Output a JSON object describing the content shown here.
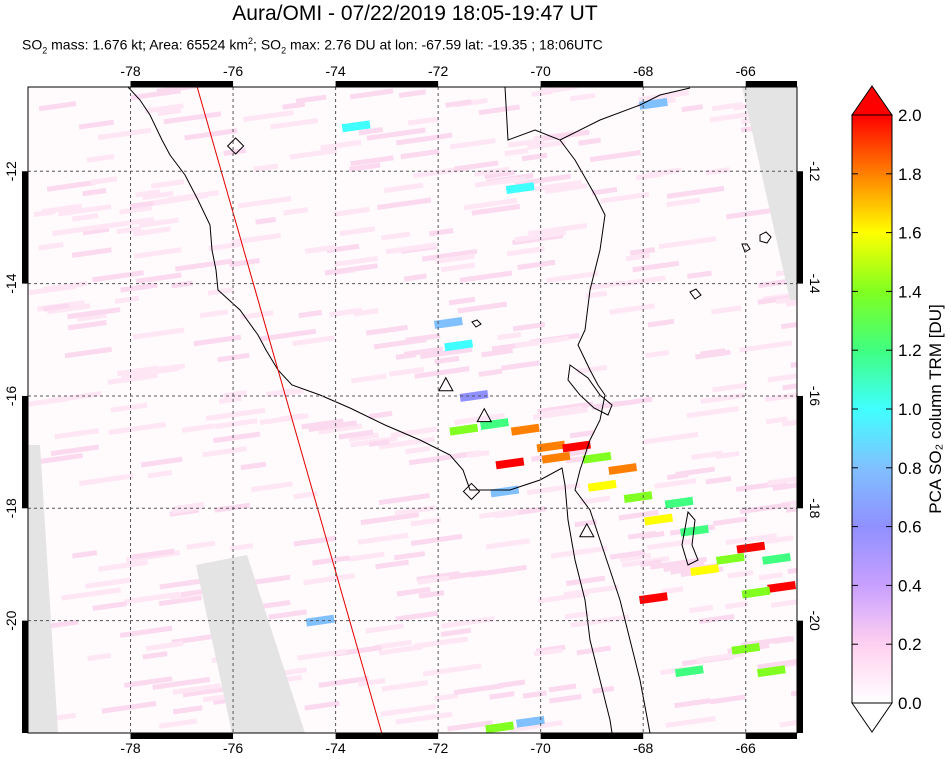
{
  "title": "Aura/OMI - 07/22/2019 18:05-19:47 UT",
  "subtitle": {
    "mass_label": "SO",
    "mass_sub": "2",
    "mass_text": " mass: 1.676 kt; Area: 65524 km",
    "area_sup": "2",
    "max_prefix": "; SO",
    "max_sub": "2",
    "max_text": " max: 2.76 DU at lon: -67.59 lat: -19.35 ; 18:06UTC"
  },
  "chart_data": {
    "type": "heatmap",
    "title": "Aura/OMI - 07/22/2019 18:05-19:47 UT",
    "xlim": [
      -80,
      -65
    ],
    "ylim": [
      -22,
      -10.5
    ],
    "x_ticks": [
      -78,
      -76,
      -74,
      -72,
      -70,
      -68,
      -66
    ],
    "y_ticks": [
      -12,
      -14,
      -16,
      -18,
      -20
    ],
    "x_tick_labels": [
      "-78",
      "-76",
      "-74",
      "-72",
      "-70",
      "-68",
      "-66"
    ],
    "y_tick_labels": [
      "-12",
      "-14",
      "-16",
      "-18",
      "-20"
    ],
    "grid": true,
    "colorbar": {
      "label": "PCA SO₂ column TRM [DU]",
      "range": [
        0.0,
        2.0
      ],
      "tick_labels": [
        "0.0",
        "0.2",
        "0.4",
        "0.6",
        "0.8",
        "1.0",
        "1.2",
        "1.4",
        "1.6",
        "1.8",
        "2.0"
      ],
      "colors": [
        "#ffffff",
        "#ffd0f0",
        "#c8a0ff",
        "#9090ff",
        "#80c0ff",
        "#40ffff",
        "#40ff80",
        "#80ff20",
        "#ffff00",
        "#ff8000",
        "#ff0000"
      ]
    },
    "volcanoes": [
      {
        "lon": -75.95,
        "lat": -11.55,
        "symbol": "diamond"
      },
      {
        "lon": -71.85,
        "lat": -15.8,
        "symbol": "triangle"
      },
      {
        "lon": -71.1,
        "lat": -16.35,
        "symbol": "triangle"
      },
      {
        "lon": -71.35,
        "lat": -17.7,
        "symbol": "diamond"
      },
      {
        "lon": -69.1,
        "lat": -18.4,
        "symbol": "triangle"
      }
    ],
    "orbit_edge_line": [
      [
        -76.7,
        -10.5
      ],
      [
        -73.1,
        -22
      ]
    ],
    "so2_pixels": [
      {
        "lon": -71.5,
        "lat": -16.6,
        "value": 1.3
      },
      {
        "lon": -70.9,
        "lat": -16.5,
        "value": 1.2
      },
      {
        "lon": -70.3,
        "lat": -16.6,
        "value": 1.7
      },
      {
        "lon": -69.8,
        "lat": -16.9,
        "value": 1.8
      },
      {
        "lon": -69.3,
        "lat": -16.9,
        "value": 2.0
      },
      {
        "lon": -70.6,
        "lat": -17.2,
        "value": 2.0
      },
      {
        "lon": -69.7,
        "lat": -17.1,
        "value": 1.8
      },
      {
        "lon": -68.9,
        "lat": -17.1,
        "value": 1.4
      },
      {
        "lon": -68.4,
        "lat": -17.3,
        "value": 1.8
      },
      {
        "lon": -68.8,
        "lat": -17.6,
        "value": 1.5
      },
      {
        "lon": -68.1,
        "lat": -17.8,
        "value": 1.4
      },
      {
        "lon": -67.7,
        "lat": -18.2,
        "value": 1.6
      },
      {
        "lon": -67.0,
        "lat": -18.4,
        "value": 1.1
      },
      {
        "lon": -66.3,
        "lat": -18.9,
        "value": 1.4
      },
      {
        "lon": -65.9,
        "lat": -18.7,
        "value": 2.0
      },
      {
        "lon": -65.4,
        "lat": -18.9,
        "value": 1.1
      },
      {
        "lon": -65.3,
        "lat": -19.4,
        "value": 2.0
      },
      {
        "lon": -67.8,
        "lat": -19.6,
        "value": 2.0
      },
      {
        "lon": -66.8,
        "lat": -19.1,
        "value": 1.5
      },
      {
        "lon": -65.8,
        "lat": -19.5,
        "value": 1.3
      },
      {
        "lon": -70.7,
        "lat": -17.7,
        "value": 0.8
      },
      {
        "lon": -71.3,
        "lat": -16.0,
        "value": 0.6
      },
      {
        "lon": -71.6,
        "lat": -15.1,
        "value": 0.9
      },
      {
        "lon": -71.8,
        "lat": -14.7,
        "value": 0.7
      },
      {
        "lon": -74.3,
        "lat": -20.0,
        "value": 0.7
      },
      {
        "lon": -70.4,
        "lat": -12.3,
        "value": 0.9
      },
      {
        "lon": -73.6,
        "lat": -11.2,
        "value": 1.0
      },
      {
        "lon": -67.8,
        "lat": -10.8,
        "value": 0.7
      },
      {
        "lon": -67.3,
        "lat": -17.9,
        "value": 1.2
      },
      {
        "lon": -66.0,
        "lat": -20.5,
        "value": 1.3
      },
      {
        "lon": -65.5,
        "lat": -20.9,
        "value": 1.4
      },
      {
        "lon": -70.2,
        "lat": -21.8,
        "value": 0.8
      },
      {
        "lon": -70.8,
        "lat": -21.9,
        "value": 1.4
      },
      {
        "lon": -67.1,
        "lat": -20.9,
        "value": 1.2
      }
    ]
  }
}
